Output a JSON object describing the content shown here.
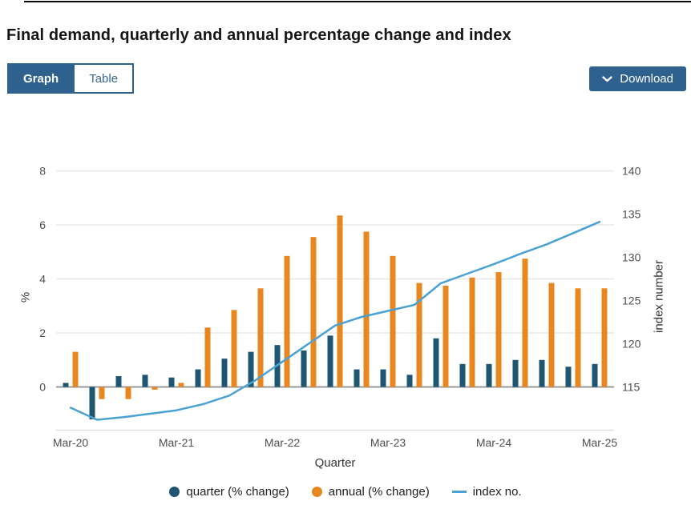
{
  "page": {
    "title": "Final demand, quarterly and annual percentage change and index"
  },
  "tabs": [
    {
      "label": "Graph",
      "active": true
    },
    {
      "label": "Table",
      "active": false
    }
  ],
  "download": {
    "label": "Download",
    "icon": "chevron-down-icon"
  },
  "colors": {
    "accent_blue": "#2e618e",
    "bar_quarter": "#1e5570",
    "bar_annual": "#e8871f",
    "line_index": "#4aa2d4",
    "gridline": "#e8e8e8",
    "zero_line": "#9a9a9a",
    "tick_text": "#4f4f4f"
  },
  "chart_data": {
    "type": "bar",
    "subtype": "combo-bar-line-dual-axis",
    "categories": [
      "Mar-20",
      "Jun-20",
      "Sep-20",
      "Dec-20",
      "Mar-21",
      "Jun-21",
      "Sep-21",
      "Dec-21",
      "Mar-22",
      "Jun-22",
      "Sep-22",
      "Dec-22",
      "Mar-23",
      "Jun-23",
      "Sep-23",
      "Dec-23",
      "Mar-24",
      "Jun-24",
      "Sep-24",
      "Dec-24",
      "Mar-25"
    ],
    "series": [
      {
        "name": "quarter (% change)",
        "type": "bar",
        "axis": "left",
        "color": "#1e5570",
        "values": [
          0.15,
          -1.2,
          0.4,
          0.45,
          0.35,
          0.65,
          1.05,
          1.3,
          1.55,
          1.35,
          1.9,
          0.65,
          0.65,
          0.45,
          1.8,
          0.85,
          0.85,
          1.0,
          1.0,
          0.75,
          0.85
        ]
      },
      {
        "name": "annual (% change)",
        "type": "bar",
        "axis": "left",
        "color": "#e8871f",
        "values": [
          1.3,
          -0.45,
          -0.45,
          -0.1,
          0.15,
          2.2,
          2.85,
          3.65,
          4.85,
          5.55,
          6.35,
          5.75,
          4.85,
          3.85,
          3.75,
          4.05,
          4.25,
          4.75,
          3.85,
          3.65,
          3.65
        ]
      },
      {
        "name": "index no.",
        "type": "line",
        "axis": "right",
        "color": "#4aa2d4",
        "values": [
          112.6,
          111.2,
          111.5,
          111.9,
          112.3,
          113.0,
          114.0,
          115.8,
          117.9,
          120.0,
          122.1,
          123.1,
          123.8,
          124.5,
          127.0,
          128.1,
          129.2,
          130.4,
          131.5,
          132.8,
          134.1
        ]
      }
    ],
    "xlabel": "Quarter",
    "x_tick_labels": [
      "Mar-20",
      "Mar-21",
      "Mar-22",
      "Mar-23",
      "Mar-24",
      "Mar-25"
    ],
    "x_tick_indices": [
      0,
      4,
      8,
      12,
      16,
      20
    ],
    "yaxis_left": {
      "label": "%",
      "ticks": [
        0,
        2,
        4,
        6,
        8
      ],
      "range": [
        -1.6,
        8
      ]
    },
    "yaxis_right": {
      "label": "index number",
      "ticks": [
        115,
        120,
        125,
        130,
        135,
        140
      ],
      "range": [
        110,
        140
      ]
    },
    "grid": true,
    "legend_position": "bottom"
  }
}
